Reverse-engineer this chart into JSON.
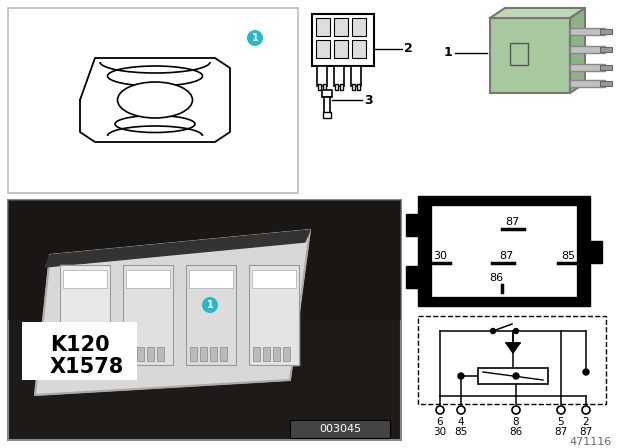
{
  "white": "#ffffff",
  "black": "#000000",
  "cyan_badge": "#29b8c8",
  "light_green_relay": "#a8c8a0",
  "part_number": "471116",
  "photo_label": "003045",
  "pin_labels_row1": [
    "6",
    "4",
    "8",
    "5",
    "2"
  ],
  "pin_labels_row2": [
    "30",
    "85",
    "86",
    "87",
    "87"
  ],
  "bg_gray": "#e8e8e8",
  "dark_photo": "#2a2520",
  "relay_gray": "#888888"
}
